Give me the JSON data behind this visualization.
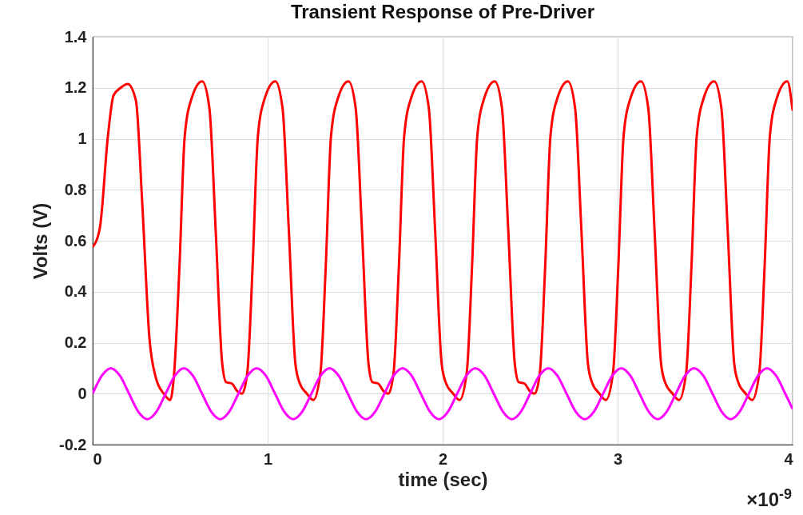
{
  "chart_data": {
    "type": "line",
    "title": "Transient Response of Pre-Driver",
    "xlabel": "time (sec)",
    "ylabel": "Volts (V)",
    "annotations": [
      "×10$^{-9}$"
    ],
    "xlim": [
      0,
      4
    ],
    "xticks": [
      0,
      1,
      2,
      3,
      4
    ],
    "ylim": [
      -0.2,
      1.4
    ],
    "yticks": [
      -0.2,
      0,
      0.2,
      0.4,
      0.6,
      0.8,
      1,
      1.2,
      1.4
    ],
    "grid": true,
    "line_style": "solid",
    "series": [
      {
        "color": "#ff0000",
        "x": [
          0,
          0.041,
          0.087,
          0.119,
          0.16,
          0.2,
          0.247,
          0.283,
          0.324,
          0.36,
          0.406,
          0.443,
          0.466,
          0.496,
          0.526,
          0.566,
          0.626,
          0.667,
          0.703,
          0.74,
          0.763,
          0.795,
          0.826,
          0.854,
          0.884,
          0.914,
          0.944,
          0.984,
          1.044,
          1.085,
          1.121,
          1.158,
          1.181,
          1.224,
          1.261,
          1.302,
          1.332,
          1.362,
          1.402,
          1.462,
          1.503,
          1.539,
          1.576,
          1.599,
          1.631,
          1.662,
          1.69,
          1.72,
          1.75,
          1.78,
          1.82,
          1.88,
          1.921,
          1.957,
          1.994,
          2.017,
          2.06,
          2.097,
          2.138,
          2.168,
          2.198,
          2.238,
          2.298,
          2.339,
          2.375,
          2.412,
          2.435,
          2.467,
          2.498,
          2.526,
          2.556,
          2.586,
          2.616,
          2.656,
          2.716,
          2.757,
          2.793,
          2.83,
          2.853,
          2.896,
          2.933,
          2.974,
          3.004,
          3.034,
          3.074,
          3.134,
          3.175,
          3.211,
          3.248,
          3.271,
          3.314,
          3.351,
          3.392,
          3.422,
          3.452,
          3.492,
          3.552,
          3.593,
          3.629,
          3.666,
          3.689,
          3.732,
          3.769,
          3.81,
          3.84,
          3.87,
          3.91,
          3.97,
          4.0
        ],
        "values": [
          0.575,
          0.65,
          1.01,
          1.17,
          1.2,
          1.215,
          1.15,
          0.75,
          0.22,
          0.065,
          0,
          -0.025,
          0.085,
          0.5,
          1.01,
          1.16,
          1.225,
          1.12,
          0.64,
          0.12,
          0.045,
          0.04,
          0.01,
          0,
          0.085,
          0.5,
          1.01,
          1.16,
          1.225,
          1.12,
          0.64,
          0.12,
          0.045,
          0,
          -0.025,
          0.085,
          0.5,
          1.01,
          1.16,
          1.225,
          1.12,
          0.64,
          0.12,
          0.045,
          0.04,
          0.01,
          0,
          0.085,
          0.5,
          1.01,
          1.16,
          1.225,
          1.12,
          0.64,
          0.12,
          0.045,
          0,
          -0.025,
          0.085,
          0.5,
          1.01,
          1.16,
          1.225,
          1.12,
          0.64,
          0.12,
          0.045,
          0.04,
          0.01,
          0,
          0.085,
          0.5,
          1.01,
          1.16,
          1.225,
          1.12,
          0.64,
          0.12,
          0.045,
          0,
          -0.025,
          0.085,
          0.5,
          1.01,
          1.16,
          1.225,
          1.12,
          0.64,
          0.12,
          0.045,
          0,
          -0.025,
          0.085,
          0.5,
          1.01,
          1.16,
          1.225,
          1.12,
          0.64,
          0.12,
          0.045,
          0,
          -0.025,
          0.085,
          0.5,
          1.01,
          1.16,
          1.225,
          1.11
        ]
      },
      {
        "color": "#ff00ff",
        "x": [
          0,
          0.052,
          0.104,
          0.156,
          0.208,
          0.26,
          0.312,
          0.365,
          0.417,
          0.469,
          0.521,
          0.573,
          0.625,
          0.677,
          0.729,
          0.781,
          0.833,
          0.885,
          0.937,
          0.99,
          1.042,
          1.094,
          1.146,
          1.198,
          1.25,
          1.302,
          1.354,
          1.406,
          1.458,
          1.51,
          1.562,
          1.615,
          1.667,
          1.719,
          1.771,
          1.823,
          1.875,
          1.927,
          1.979,
          2.031,
          2.083,
          2.135,
          2.187,
          2.24,
          2.292,
          2.344,
          2.396,
          2.448,
          2.5,
          2.552,
          2.604,
          2.656,
          2.708,
          2.76,
          2.812,
          2.865,
          2.917,
          2.969,
          3.021,
          3.073,
          3.125,
          3.177,
          3.229,
          3.281,
          3.333,
          3.385,
          3.437,
          3.49,
          3.542,
          3.594,
          3.646,
          3.698,
          3.75,
          3.802,
          3.854,
          3.906,
          3.958,
          4.0
        ],
        "values": [
          0,
          0.07,
          0.1,
          0.07,
          0,
          -0.07,
          -0.1,
          -0.07,
          0,
          0.07,
          0.1,
          0.07,
          0,
          -0.07,
          -0.1,
          -0.07,
          0,
          0.07,
          0.1,
          0.07,
          0,
          -0.07,
          -0.1,
          -0.07,
          0,
          0.07,
          0.1,
          0.07,
          0,
          -0.07,
          -0.1,
          -0.07,
          0,
          0.07,
          0.1,
          0.07,
          0,
          -0.07,
          -0.1,
          -0.07,
          0,
          0.07,
          0.1,
          0.07,
          0,
          -0.07,
          -0.1,
          -0.07,
          0,
          0.07,
          0.1,
          0.07,
          0,
          -0.07,
          -0.1,
          -0.07,
          0,
          0.07,
          0.1,
          0.07,
          0,
          -0.07,
          -0.1,
          -0.07,
          0,
          0.07,
          0.1,
          0.07,
          0,
          -0.07,
          -0.1,
          -0.07,
          0,
          0.07,
          0.1,
          0.07,
          0,
          -0.06
        ]
      }
    ]
  }
}
